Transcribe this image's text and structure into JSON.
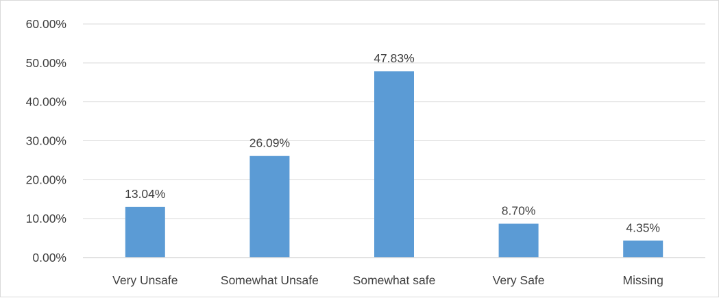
{
  "chart_data": {
    "type": "bar",
    "categories": [
      "Very Unsafe",
      "Somewhat Unsafe",
      "Somewhat safe",
      "Very Safe",
      "Missing"
    ],
    "values": [
      13.04,
      26.09,
      47.83,
      8.7,
      4.35
    ],
    "value_labels": [
      "13.04%",
      "26.09%",
      "47.83%",
      "8.70%",
      "4.35%"
    ],
    "ylim": [
      0,
      60
    ],
    "y_ticks": [
      0,
      10,
      20,
      30,
      40,
      50,
      60
    ],
    "y_tick_labels": [
      "0.00%",
      "10.00%",
      "20.00%",
      "30.00%",
      "40.00%",
      "50.00%",
      "60.00%"
    ],
    "title": "",
    "xlabel": "",
    "ylabel": "",
    "grid": true,
    "legend": "none",
    "bar_color": "#5b9bd5",
    "grid_color": "#d9d9d9",
    "text_color": "#404040"
  }
}
